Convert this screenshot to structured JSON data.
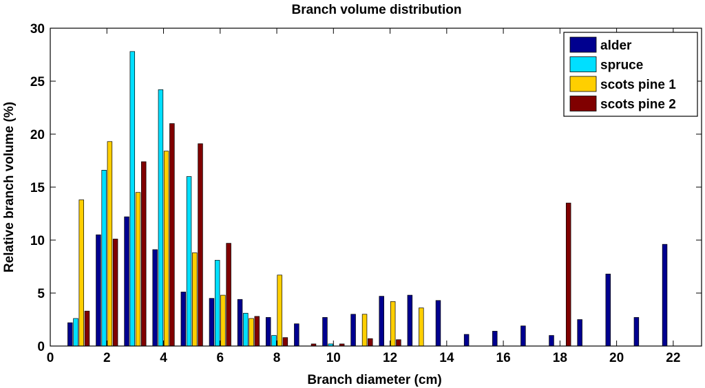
{
  "chart_data": {
    "type": "bar",
    "title": "Branch volume distribution",
    "xlabel": "Branch diameter  (cm)",
    "ylabel": "Relative branch volume  (%)",
    "xlim": [
      0,
      23
    ],
    "ylim": [
      0,
      30
    ],
    "xticks": [
      0,
      2,
      4,
      6,
      8,
      10,
      12,
      14,
      16,
      18,
      20,
      22
    ],
    "yticks": [
      0,
      5,
      10,
      15,
      20,
      25,
      30
    ],
    "grid": false,
    "legend_position": "top-right",
    "x": [
      1,
      2,
      3,
      4,
      5,
      6,
      7,
      8,
      9,
      10,
      11,
      12,
      13,
      14,
      15,
      16,
      17,
      18,
      19,
      20,
      21,
      22
    ],
    "series": [
      {
        "name": "alder",
        "color": "#00008f",
        "values": [
          2.2,
          10.5,
          12.2,
          9.1,
          5.1,
          4.5,
          4.4,
          2.7,
          2.1,
          2.7,
          3.0,
          4.7,
          4.8,
          4.3,
          1.1,
          1.4,
          1.9,
          1.0,
          2.5,
          6.8,
          2.7,
          9.6
        ]
      },
      {
        "name": "spruce",
        "color": "#00dfff",
        "values": [
          2.6,
          16.6,
          27.8,
          24.2,
          16.0,
          8.1,
          3.1,
          1.0,
          0,
          0.2,
          0,
          0,
          0,
          0,
          0,
          0,
          0,
          0,
          0,
          0,
          0,
          0
        ]
      },
      {
        "name": "scots pine 1",
        "color": "#ffcf00",
        "values": [
          13.8,
          19.3,
          14.5,
          18.4,
          8.8,
          4.8,
          2.6,
          6.7,
          0,
          0,
          3.0,
          4.2,
          3.6,
          0,
          0,
          0,
          0,
          0,
          0,
          0,
          0,
          0
        ]
      },
      {
        "name": "scots pine 2",
        "color": "#800000",
        "values": [
          3.3,
          10.1,
          17.4,
          21.0,
          19.1,
          9.7,
          2.8,
          0.8,
          0.2,
          0.2,
          0.7,
          0.6,
          0,
          0,
          0,
          0,
          0,
          13.5,
          0,
          0,
          0,
          0
        ]
      }
    ]
  }
}
